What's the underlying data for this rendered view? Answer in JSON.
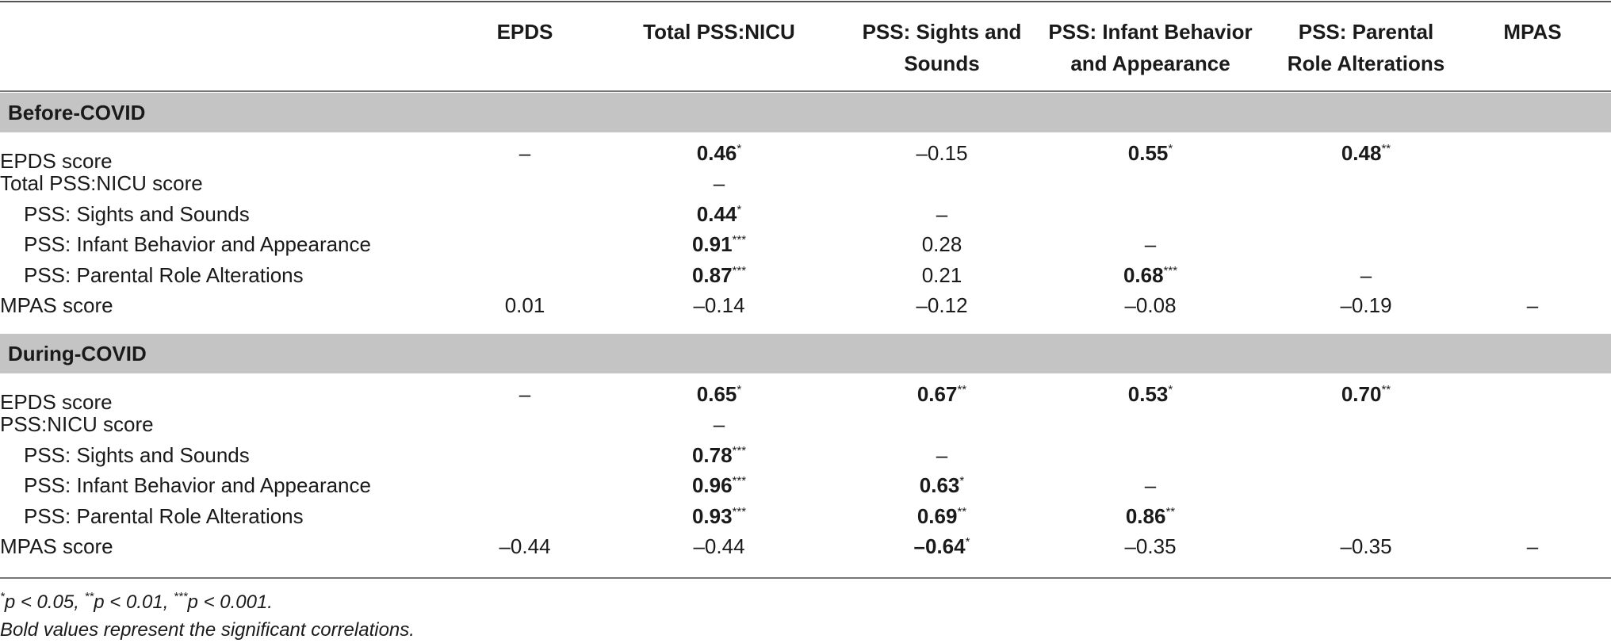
{
  "columns": [
    "EPDS",
    "Total PSS:NICU",
    "PSS: Sights and Sounds",
    "PSS: Infant Behavior and Appearance",
    "PSS: Parental Role Alterations",
    "MPAS"
  ],
  "column_lines": [
    [
      "EPDS"
    ],
    [
      "Total PSS:NICU"
    ],
    [
      "PSS: Sights and",
      "Sounds"
    ],
    [
      "PSS: Infant Behavior",
      "and Appearance"
    ],
    [
      "PSS: Parental",
      "Role Alterations"
    ],
    [
      "MPAS"
    ]
  ],
  "sections": [
    {
      "title": "Before-COVID",
      "rows": [
        {
          "label": "EPDS score",
          "indent": false,
          "cells": [
            {
              "v": "–",
              "b": false,
              "s": ""
            },
            {
              "v": "0.46",
              "b": true,
              "s": "*"
            },
            {
              "v": "–0.15",
              "b": false,
              "s": ""
            },
            {
              "v": "0.55",
              "b": true,
              "s": "*"
            },
            {
              "v": "0.48",
              "b": true,
              "s": "**"
            },
            {
              "v": "",
              "b": false,
              "s": ""
            }
          ]
        },
        {
          "label": "Total PSS:NICU score",
          "indent": false,
          "cells": [
            {
              "v": "",
              "b": false,
              "s": ""
            },
            {
              "v": "–",
              "b": false,
              "s": ""
            },
            {
              "v": "",
              "b": false,
              "s": ""
            },
            {
              "v": "",
              "b": false,
              "s": ""
            },
            {
              "v": "",
              "b": false,
              "s": ""
            },
            {
              "v": "",
              "b": false,
              "s": ""
            }
          ]
        },
        {
          "label": "PSS: Sights and Sounds",
          "indent": true,
          "cells": [
            {
              "v": "",
              "b": false,
              "s": ""
            },
            {
              "v": "0.44",
              "b": true,
              "s": "*"
            },
            {
              "v": "–",
              "b": false,
              "s": ""
            },
            {
              "v": "",
              "b": false,
              "s": ""
            },
            {
              "v": "",
              "b": false,
              "s": ""
            },
            {
              "v": "",
              "b": false,
              "s": ""
            }
          ]
        },
        {
          "label": "PSS: Infant Behavior and Appearance",
          "indent": true,
          "cells": [
            {
              "v": "",
              "b": false,
              "s": ""
            },
            {
              "v": "0.91",
              "b": true,
              "s": "***"
            },
            {
              "v": "0.28",
              "b": false,
              "s": ""
            },
            {
              "v": "–",
              "b": false,
              "s": ""
            },
            {
              "v": "",
              "b": false,
              "s": ""
            },
            {
              "v": "",
              "b": false,
              "s": ""
            }
          ]
        },
        {
          "label": "PSS: Parental Role Alterations",
          "indent": true,
          "cells": [
            {
              "v": "",
              "b": false,
              "s": ""
            },
            {
              "v": "0.87",
              "b": true,
              "s": "***"
            },
            {
              "v": "0.21",
              "b": false,
              "s": ""
            },
            {
              "v": "0.68",
              "b": true,
              "s": "***"
            },
            {
              "v": "–",
              "b": false,
              "s": ""
            },
            {
              "v": "",
              "b": false,
              "s": ""
            }
          ]
        },
        {
          "label": "MPAS score",
          "indent": false,
          "cells": [
            {
              "v": "0.01",
              "b": false,
              "s": ""
            },
            {
              "v": "–0.14",
              "b": false,
              "s": ""
            },
            {
              "v": "–0.12",
              "b": false,
              "s": ""
            },
            {
              "v": "–0.08",
              "b": false,
              "s": ""
            },
            {
              "v": "–0.19",
              "b": false,
              "s": ""
            },
            {
              "v": "–",
              "b": false,
              "s": ""
            }
          ]
        }
      ]
    },
    {
      "title": "During-COVID",
      "rows": [
        {
          "label": "EPDS score",
          "indent": false,
          "cells": [
            {
              "v": "–",
              "b": false,
              "s": ""
            },
            {
              "v": "0.65",
              "b": true,
              "s": "*"
            },
            {
              "v": "0.67",
              "b": true,
              "s": "**"
            },
            {
              "v": "0.53",
              "b": true,
              "s": "*"
            },
            {
              "v": "0.70",
              "b": true,
              "s": "**"
            },
            {
              "v": "",
              "b": false,
              "s": ""
            }
          ]
        },
        {
          "label": "PSS:NICU score",
          "indent": false,
          "cells": [
            {
              "v": "",
              "b": false,
              "s": ""
            },
            {
              "v": "–",
              "b": false,
              "s": ""
            },
            {
              "v": "",
              "b": false,
              "s": ""
            },
            {
              "v": "",
              "b": false,
              "s": ""
            },
            {
              "v": "",
              "b": false,
              "s": ""
            },
            {
              "v": "",
              "b": false,
              "s": ""
            }
          ]
        },
        {
          "label": "PSS: Sights and Sounds",
          "indent": true,
          "cells": [
            {
              "v": "",
              "b": false,
              "s": ""
            },
            {
              "v": "0.78",
              "b": true,
              "s": "***"
            },
            {
              "v": "–",
              "b": false,
              "s": ""
            },
            {
              "v": "",
              "b": false,
              "s": ""
            },
            {
              "v": "",
              "b": false,
              "s": ""
            },
            {
              "v": "",
              "b": false,
              "s": ""
            }
          ]
        },
        {
          "label": "PSS: Infant Behavior and Appearance",
          "indent": true,
          "cells": [
            {
              "v": "",
              "b": false,
              "s": ""
            },
            {
              "v": "0.96",
              "b": true,
              "s": "***"
            },
            {
              "v": "0.63",
              "b": true,
              "s": "*"
            },
            {
              "v": "–",
              "b": false,
              "s": ""
            },
            {
              "v": "",
              "b": false,
              "s": ""
            },
            {
              "v": "",
              "b": false,
              "s": ""
            }
          ]
        },
        {
          "label": "PSS: Parental Role Alterations",
          "indent": true,
          "cells": [
            {
              "v": "",
              "b": false,
              "s": ""
            },
            {
              "v": "0.93",
              "b": true,
              "s": "***"
            },
            {
              "v": "0.69",
              "b": true,
              "s": "**"
            },
            {
              "v": "0.86",
              "b": true,
              "s": "**"
            },
            {
              "v": "",
              "b": false,
              "s": ""
            },
            {
              "v": "",
              "b": false,
              "s": ""
            }
          ]
        },
        {
          "label": "MPAS score",
          "indent": false,
          "cells": [
            {
              "v": "–0.44",
              "b": false,
              "s": ""
            },
            {
              "v": "–0.44",
              "b": false,
              "s": ""
            },
            {
              "v": "–0.64",
              "b": true,
              "s": "*"
            },
            {
              "v": "–0.35",
              "b": false,
              "s": ""
            },
            {
              "v": "–0.35",
              "b": false,
              "s": ""
            },
            {
              "v": "–",
              "b": false,
              "s": ""
            }
          ]
        }
      ]
    }
  ],
  "footnote": {
    "parts": [
      {
        "sup": "*",
        "text": "p < 0.05, "
      },
      {
        "sup": "**",
        "text": "p < 0.01, "
      },
      {
        "sup": "***",
        "text": "p < 0.001."
      }
    ],
    "bold_note": "Bold values represent the significant correlations."
  }
}
